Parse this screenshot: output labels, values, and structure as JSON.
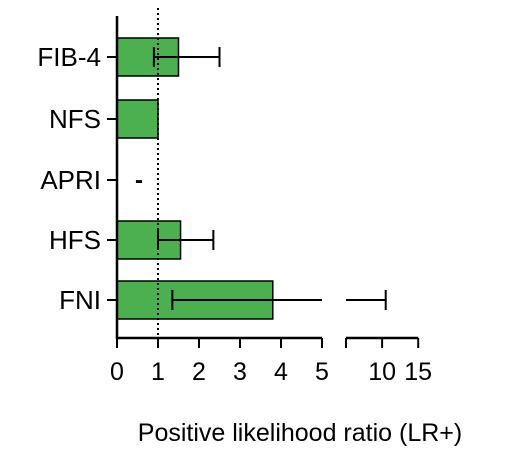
{
  "chart_data": {
    "type": "bar",
    "orientation": "horizontal",
    "title": "",
    "xlabel": "Positive likelihood ratio (LR+)",
    "ylabel": "",
    "categories": [
      "FIB-4",
      "NFS",
      "APRI",
      "HFS",
      "FNI"
    ],
    "series": [
      {
        "values": [
          1.5,
          1.0,
          null,
          1.55,
          3.8
        ],
        "ci_lower": [
          0.9,
          null,
          null,
          1.0,
          1.35
        ],
        "ci_upper": [
          2.5,
          null,
          null,
          2.35,
          10.5
        ],
        "missing_label": [
          null,
          null,
          "-",
          null,
          null
        ],
        "color": "#4caf50",
        "edge_color": "#000000"
      }
    ],
    "x_axis": {
      "type": "broken",
      "segment_1": {
        "range": [
          0,
          5
        ],
        "ticks": [
          0,
          1,
          2,
          3,
          4,
          5
        ]
      },
      "segment_2": {
        "range": [
          5,
          15
        ],
        "ticks": [
          10,
          15
        ]
      }
    },
    "tick_labels": [
      "0",
      "1",
      "2",
      "3",
      "4",
      "5",
      "10",
      "15"
    ],
    "reference_line": {
      "x": 1,
      "style": "dotted"
    },
    "grid": false,
    "legend": "none"
  }
}
